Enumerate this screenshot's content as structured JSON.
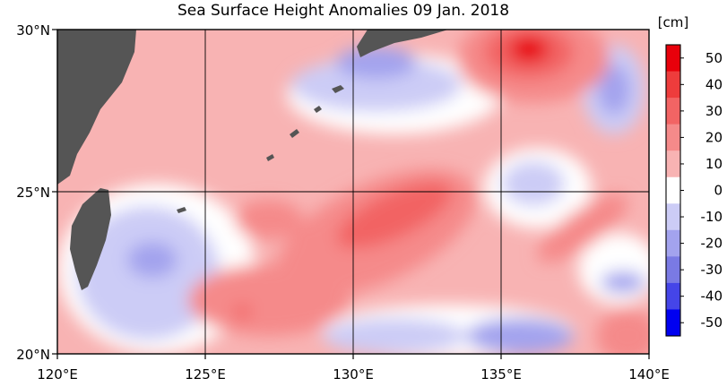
{
  "title": "Sea Surface Height Anomalies  09 Jan. 2018",
  "unit": "[cm]",
  "lat_labels": [
    {
      "value": 30,
      "text": "30°N"
    },
    {
      "value": 25,
      "text": "25°N"
    },
    {
      "value": 20,
      "text": "20°N"
    }
  ],
  "lon_labels": [
    {
      "value": 120,
      "text": "120°E"
    },
    {
      "value": 125,
      "text": "125°E"
    },
    {
      "value": 130,
      "text": "130°E"
    },
    {
      "value": 135,
      "text": "135°E"
    },
    {
      "value": 140,
      "text": "140°E"
    }
  ],
  "extent": {
    "lon": [
      120,
      140
    ],
    "lat": [
      20,
      30
    ]
  },
  "colorbar": {
    "ticks": [
      "50",
      "40",
      "30",
      "20",
      "10",
      "0",
      "-10",
      "-20",
      "-30",
      "-40",
      "-50"
    ],
    "bins": [
      {
        "color": "#e8000b"
      },
      {
        "color": "#ee3c3c"
      },
      {
        "color": "#f26464"
      },
      {
        "color": "#f58a8a"
      },
      {
        "color": "#f8b3b3"
      },
      {
        "color": "#ffffff"
      },
      {
        "color": "#ccccf6"
      },
      {
        "color": "#a3a3ee"
      },
      {
        "color": "#7a7ae4"
      },
      {
        "color": "#4545e8"
      },
      {
        "color": "#0000f0"
      }
    ]
  },
  "colors": {
    "land_dark": "#555555",
    "land_light": "#d2d2d2",
    "grid": "#000000"
  }
}
